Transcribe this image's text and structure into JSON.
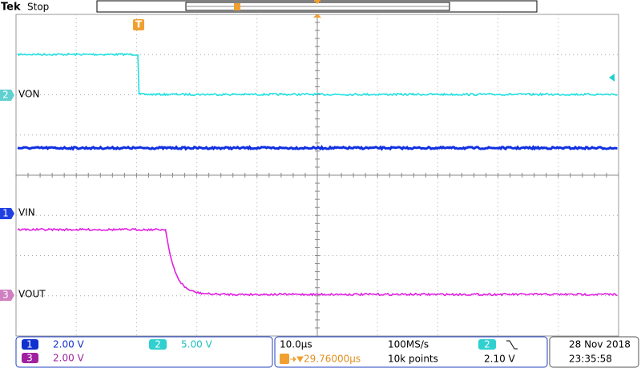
{
  "header": {
    "brand": "Tek",
    "status": "Stop"
  },
  "markers": {
    "trigger": "T"
  },
  "channels": [
    {
      "number": "2",
      "label": "VON"
    },
    {
      "number": "1",
      "label": "VIN"
    },
    {
      "number": "3",
      "label": "VOUT"
    }
  ],
  "status_bar": {
    "channels": [
      {
        "number": "1",
        "scale": "2.00 V"
      },
      {
        "number": "2",
        "scale": "5.00 V"
      },
      {
        "number": "3",
        "scale": "2.00 V"
      }
    ],
    "timebase": "10.0µs",
    "sample_rate": "100MS/s",
    "trigger_position": "29.76000µs",
    "record_length": "10k points",
    "trigger_source": "2",
    "trigger_level": "2.10 V",
    "date": "28 Nov 2018",
    "time": "23:35:58"
  }
}
